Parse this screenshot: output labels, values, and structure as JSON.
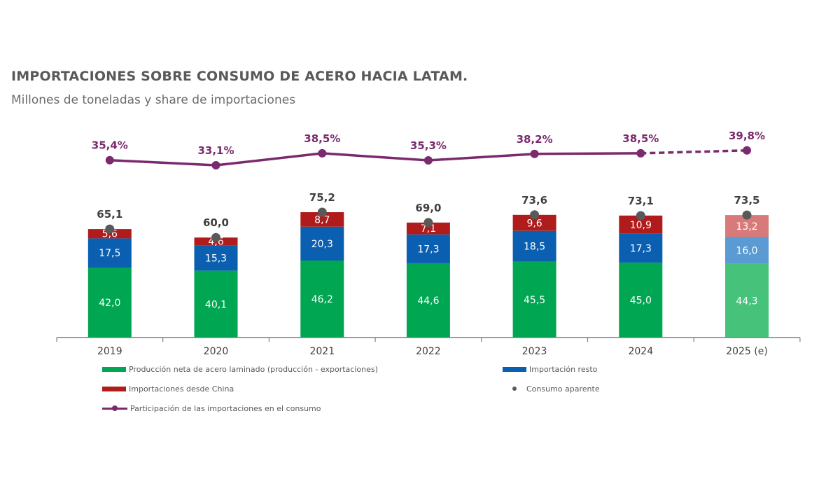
{
  "chart_data": {
    "type": "bar",
    "title": "IMPORTACIONES SOBRE CONSUMO DE ACERO HACIA LATAM.",
    "subtitle": "Millones de toneladas y share de importaciones",
    "categories": [
      "2019",
      "2020",
      "2021",
      "2022",
      "2023",
      "2024",
      "2025 (e)"
    ],
    "estimated_category": "2025 (e)",
    "series": [
      {
        "name": "Producción neta de acero laminado (producción - exportaciones)",
        "color": "#00a651",
        "estimate_color": "#46c27a",
        "values": [
          42.0,
          40.1,
          46.2,
          44.6,
          45.5,
          45.0,
          44.3
        ],
        "labels": [
          "42,0",
          "40,1",
          "46,2",
          "44,6",
          "45,5",
          "45,0",
          "44,3"
        ]
      },
      {
        "name": "Importación resto",
        "color": "#0a5fb0",
        "estimate_color": "#5a9bd4",
        "values": [
          17.5,
          15.3,
          20.3,
          17.3,
          18.5,
          17.3,
          16.0
        ],
        "labels": [
          "17,5",
          "15,3",
          "20,3",
          "17,3",
          "18,5",
          "17,3",
          "16,0"
        ]
      },
      {
        "name": "Importaciones desde China",
        "color": "#b01c1c",
        "estimate_color": "#d97a7a",
        "values": [
          5.6,
          4.6,
          8.7,
          7.1,
          9.6,
          10.9,
          13.2
        ],
        "labels": [
          "5,6",
          "4,6",
          "8,7",
          "7,1",
          "9,6",
          "10,9",
          "13,2"
        ]
      }
    ],
    "consumption": {
      "name": "Consumo aparente",
      "color": "#595959",
      "values": [
        65.1,
        60.0,
        75.2,
        69.0,
        73.6,
        73.1,
        73.5
      ],
      "labels": [
        "65,1",
        "60,0",
        "75,2",
        "69,0",
        "73,6",
        "73,1",
        "73,5"
      ]
    },
    "share": {
      "name": "Participación de las importaciones en el consumo",
      "color": "#7b2a6e",
      "values": [
        35.4,
        33.1,
        38.5,
        35.3,
        38.2,
        38.5,
        39.8
      ],
      "labels": [
        "35,4%",
        "33,1%",
        "38,5%",
        "35,3%",
        "38,2%",
        "38,5%",
        "39,8%"
      ],
      "dashed_last_segment": true
    },
    "bar_label_color": "#ffffff",
    "total_label_color": "#404040",
    "axis_color": "#7f7f7f",
    "legend_placement": "bottom"
  }
}
